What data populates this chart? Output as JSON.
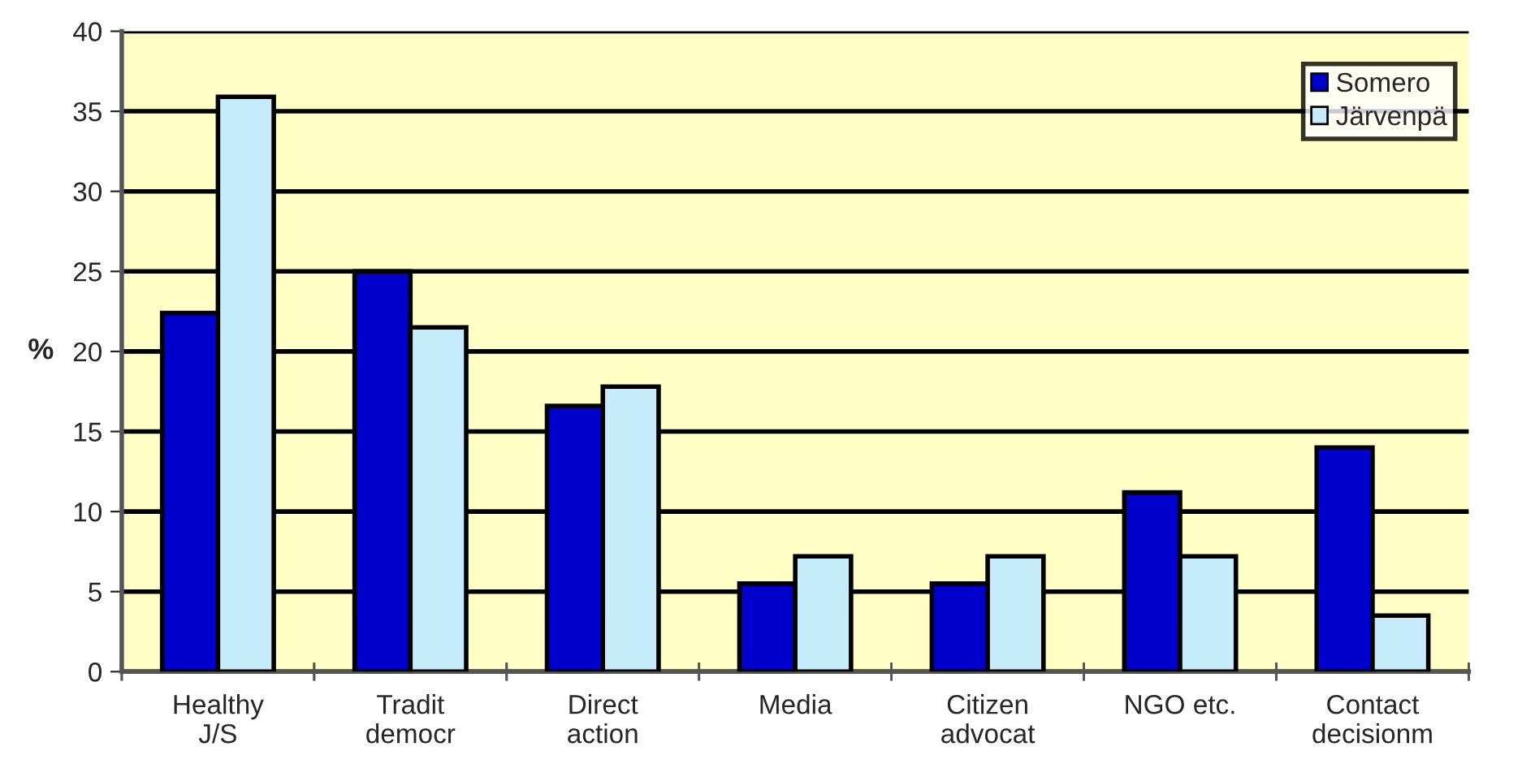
{
  "chart_data": {
    "type": "bar",
    "ylabel": "%",
    "categories": [
      "Healthy\nJ/S",
      "Tradit\ndemocr",
      "Direct\naction",
      "Media",
      "Citizen\nadvocat",
      "NGO etc.",
      "Contact\ndecisionm"
    ],
    "series": [
      {
        "name": "Somero",
        "color": "#0000cc",
        "values": [
          22.4,
          25.0,
          16.6,
          5.5,
          5.5,
          11.2,
          14.0
        ]
      },
      {
        "name": "Järvenpä",
        "color": "#c6ecfb",
        "values": [
          35.9,
          21.5,
          17.8,
          7.2,
          7.2,
          7.2,
          3.5
        ]
      }
    ],
    "ylim": [
      0,
      40
    ],
    "yticks": [
      0,
      5,
      10,
      15,
      20,
      25,
      30,
      35,
      40
    ],
    "grid": "y",
    "legend": "top right"
  }
}
